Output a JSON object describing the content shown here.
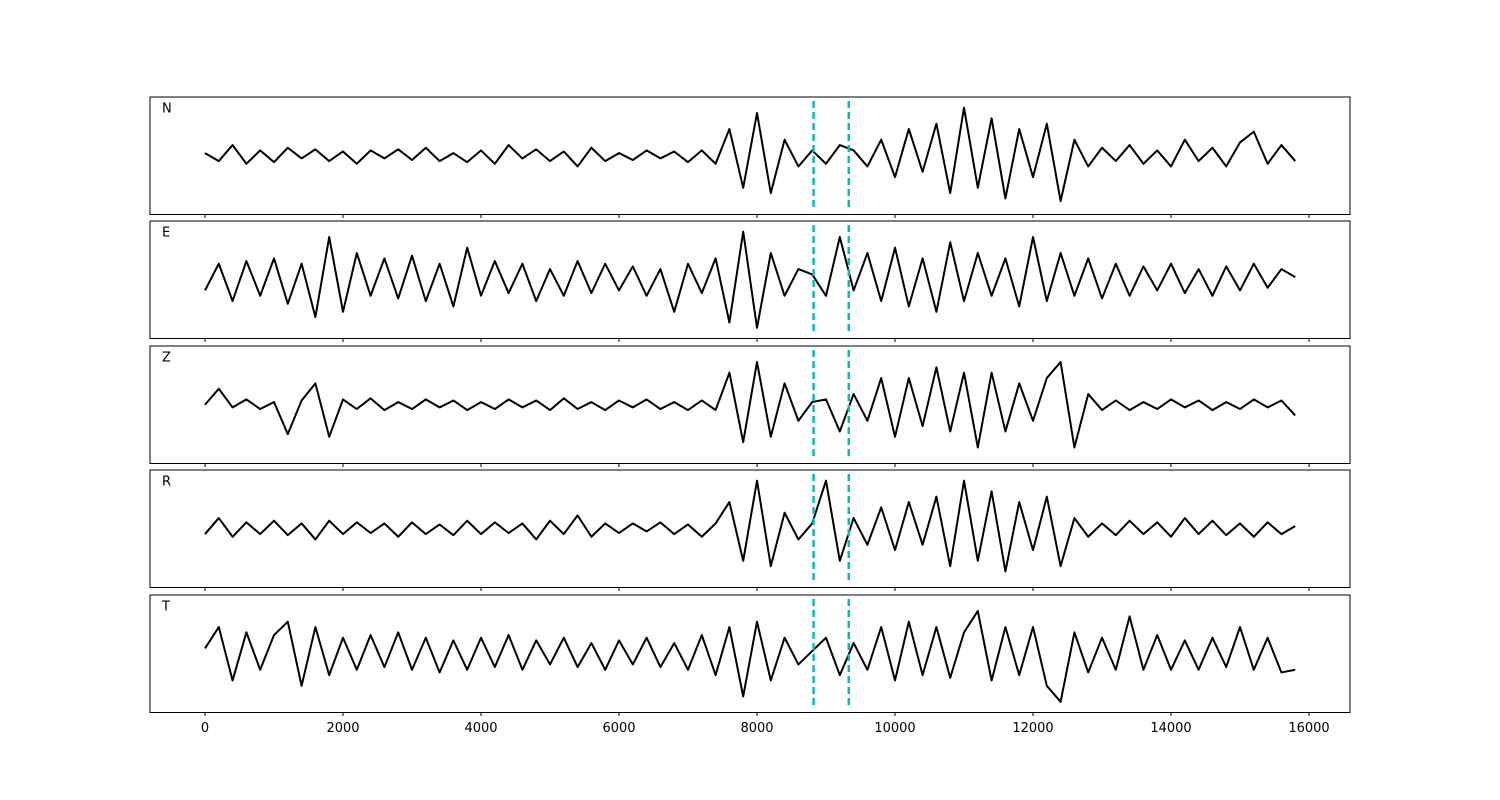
{
  "chart_data": {
    "type": "line",
    "x": [
      0,
      200,
      400,
      600,
      800,
      1000,
      1200,
      1400,
      1600,
      1800,
      2000,
      2200,
      2400,
      2600,
      2800,
      3000,
      3200,
      3400,
      3600,
      3800,
      4000,
      4200,
      4400,
      4600,
      4800,
      5000,
      5200,
      5400,
      5600,
      5800,
      6000,
      6200,
      6400,
      6600,
      6800,
      7000,
      7200,
      7400,
      7600,
      7800,
      8000,
      8200,
      8400,
      8600,
      8800,
      9000,
      9200,
      9400,
      9600,
      9800,
      10000,
      10200,
      10400,
      10600,
      10800,
      11000,
      11200,
      11400,
      11600,
      11800,
      12000,
      12200,
      12400,
      12600,
      12800,
      13000,
      13200,
      13400,
      13600,
      13800,
      14000,
      14200,
      14400,
      14600,
      14800,
      15000,
      15200,
      15400,
      15600,
      15800
    ],
    "xlim": [
      -797,
      16594
    ],
    "xticks": [
      0,
      2000,
      4000,
      6000,
      8000,
      10000,
      12000,
      14000,
      16000
    ],
    "ylim": [
      -1.1,
      1.1
    ],
    "vlines": [
      8820,
      9330
    ],
    "vline_color": "#00bfbf",
    "series": [
      {
        "name": "N",
        "color": "#000000",
        "values": [
          0.05,
          -0.1,
          0.2,
          -0.15,
          0.1,
          -0.12,
          0.15,
          -0.05,
          0.12,
          -0.1,
          0.08,
          -0.15,
          0.1,
          -0.05,
          0.12,
          -0.08,
          0.15,
          -0.1,
          0.05,
          -0.12,
          0.1,
          -0.15,
          0.2,
          -0.05,
          0.12,
          -0.1,
          0.08,
          -0.2,
          0.15,
          -0.1,
          0.05,
          -0.08,
          0.1,
          -0.05,
          0.08,
          -0.12,
          0.1,
          -0.15,
          0.5,
          -0.6,
          0.8,
          -0.7,
          0.3,
          -0.2,
          0.1,
          -0.15,
          0.2,
          0.1,
          -0.2,
          0.3,
          -0.4,
          0.5,
          -0.3,
          0.6,
          -0.7,
          0.9,
          -0.6,
          0.7,
          -0.8,
          0.5,
          -0.4,
          0.6,
          -0.85,
          0.3,
          -0.2,
          0.15,
          -0.1,
          0.2,
          -0.15,
          0.1,
          -0.2,
          0.3,
          -0.1,
          0.15,
          -0.2,
          0.25,
          0.45,
          -0.15,
          0.2,
          -0.1
        ]
      },
      {
        "name": "E",
        "color": "#000000",
        "values": [
          -0.2,
          0.3,
          -0.4,
          0.35,
          -0.3,
          0.4,
          -0.45,
          0.3,
          -0.7,
          0.8,
          -0.6,
          0.5,
          -0.3,
          0.4,
          -0.35,
          0.45,
          -0.4,
          0.3,
          -0.5,
          0.6,
          -0.3,
          0.35,
          -0.25,
          0.3,
          -0.4,
          0.2,
          -0.3,
          0.35,
          -0.25,
          0.3,
          -0.2,
          0.25,
          -0.3,
          0.2,
          -0.6,
          0.3,
          -0.25,
          0.4,
          -0.8,
          0.9,
          -0.9,
          0.5,
          -0.3,
          0.2,
          0.1,
          -0.3,
          0.8,
          -0.2,
          0.5,
          -0.4,
          0.6,
          -0.5,
          0.4,
          -0.6,
          0.7,
          -0.4,
          0.5,
          -0.3,
          0.4,
          -0.5,
          0.8,
          -0.4,
          0.5,
          -0.3,
          0.4,
          -0.35,
          0.3,
          -0.3,
          0.25,
          -0.2,
          0.3,
          -0.25,
          0.2,
          -0.3,
          0.25,
          -0.2,
          0.3,
          -0.15,
          0.2,
          0.05
        ]
      },
      {
        "name": "Z",
        "color": "#000000",
        "values": [
          0.0,
          0.3,
          -0.05,
          0.1,
          -0.08,
          0.05,
          -0.55,
          0.08,
          0.4,
          -0.6,
          0.1,
          -0.08,
          0.12,
          -0.1,
          0.05,
          -0.08,
          0.1,
          -0.05,
          0.08,
          -0.1,
          0.05,
          -0.08,
          0.1,
          -0.05,
          0.08,
          -0.1,
          0.12,
          -0.08,
          0.05,
          -0.1,
          0.08,
          -0.05,
          0.1,
          -0.08,
          0.05,
          -0.1,
          0.08,
          -0.1,
          0.6,
          -0.7,
          0.8,
          -0.6,
          0.4,
          -0.3,
          0.05,
          0.1,
          -0.5,
          0.2,
          -0.3,
          0.5,
          -0.6,
          0.5,
          -0.4,
          0.7,
          -0.5,
          0.6,
          -0.8,
          0.6,
          -0.5,
          0.4,
          -0.3,
          0.5,
          0.8,
          -0.8,
          0.2,
          -0.1,
          0.08,
          -0.1,
          0.05,
          -0.08,
          0.1,
          -0.05,
          0.08,
          -0.1,
          0.05,
          -0.08,
          0.1,
          -0.05,
          0.08,
          -0.2
        ]
      },
      {
        "name": "R",
        "color": "#000000",
        "values": [
          -0.1,
          0.2,
          -0.15,
          0.12,
          -0.1,
          0.15,
          -0.12,
          0.1,
          -0.2,
          0.15,
          -0.1,
          0.12,
          -0.08,
          0.1,
          -0.15,
          0.12,
          -0.1,
          0.08,
          -0.12,
          0.15,
          -0.1,
          0.12,
          -0.08,
          0.1,
          -0.2,
          0.15,
          -0.1,
          0.25,
          -0.15,
          0.1,
          -0.08,
          0.1,
          -0.05,
          0.12,
          -0.1,
          0.08,
          -0.15,
          0.1,
          0.5,
          -0.6,
          0.9,
          -0.7,
          0.3,
          -0.2,
          0.1,
          0.9,
          -0.6,
          0.2,
          -0.3,
          0.4,
          -0.4,
          0.5,
          -0.3,
          0.6,
          -0.7,
          0.9,
          -0.6,
          0.7,
          -0.8,
          0.5,
          -0.4,
          0.6,
          -0.7,
          0.2,
          -0.15,
          0.1,
          -0.12,
          0.15,
          -0.1,
          0.12,
          -0.15,
          0.2,
          -0.1,
          0.15,
          -0.12,
          0.1,
          -0.15,
          0.12,
          -0.1,
          0.05
        ]
      },
      {
        "name": "T",
        "color": "#000000",
        "values": [
          0.1,
          0.5,
          -0.5,
          0.4,
          -0.3,
          0.35,
          0.6,
          -0.6,
          0.5,
          -0.4,
          0.3,
          -0.3,
          0.35,
          -0.25,
          0.4,
          -0.3,
          0.3,
          -0.35,
          0.25,
          -0.3,
          0.3,
          -0.25,
          0.35,
          -0.3,
          0.25,
          -0.2,
          0.3,
          -0.25,
          0.2,
          -0.3,
          0.25,
          -0.2,
          0.3,
          -0.25,
          0.2,
          -0.3,
          0.35,
          -0.4,
          0.5,
          -0.8,
          0.6,
          -0.5,
          0.3,
          -0.2,
          0.05,
          0.3,
          -0.4,
          0.2,
          -0.3,
          0.5,
          -0.5,
          0.6,
          -0.4,
          0.5,
          -0.45,
          0.4,
          0.8,
          -0.5,
          0.5,
          -0.4,
          0.5,
          -0.6,
          -0.9,
          0.4,
          -0.35,
          0.3,
          -0.3,
          0.7,
          -0.3,
          0.35,
          -0.3,
          0.25,
          -0.3,
          0.3,
          -0.25,
          0.5,
          -0.3,
          0.3,
          -0.35,
          -0.3
        ]
      }
    ]
  }
}
